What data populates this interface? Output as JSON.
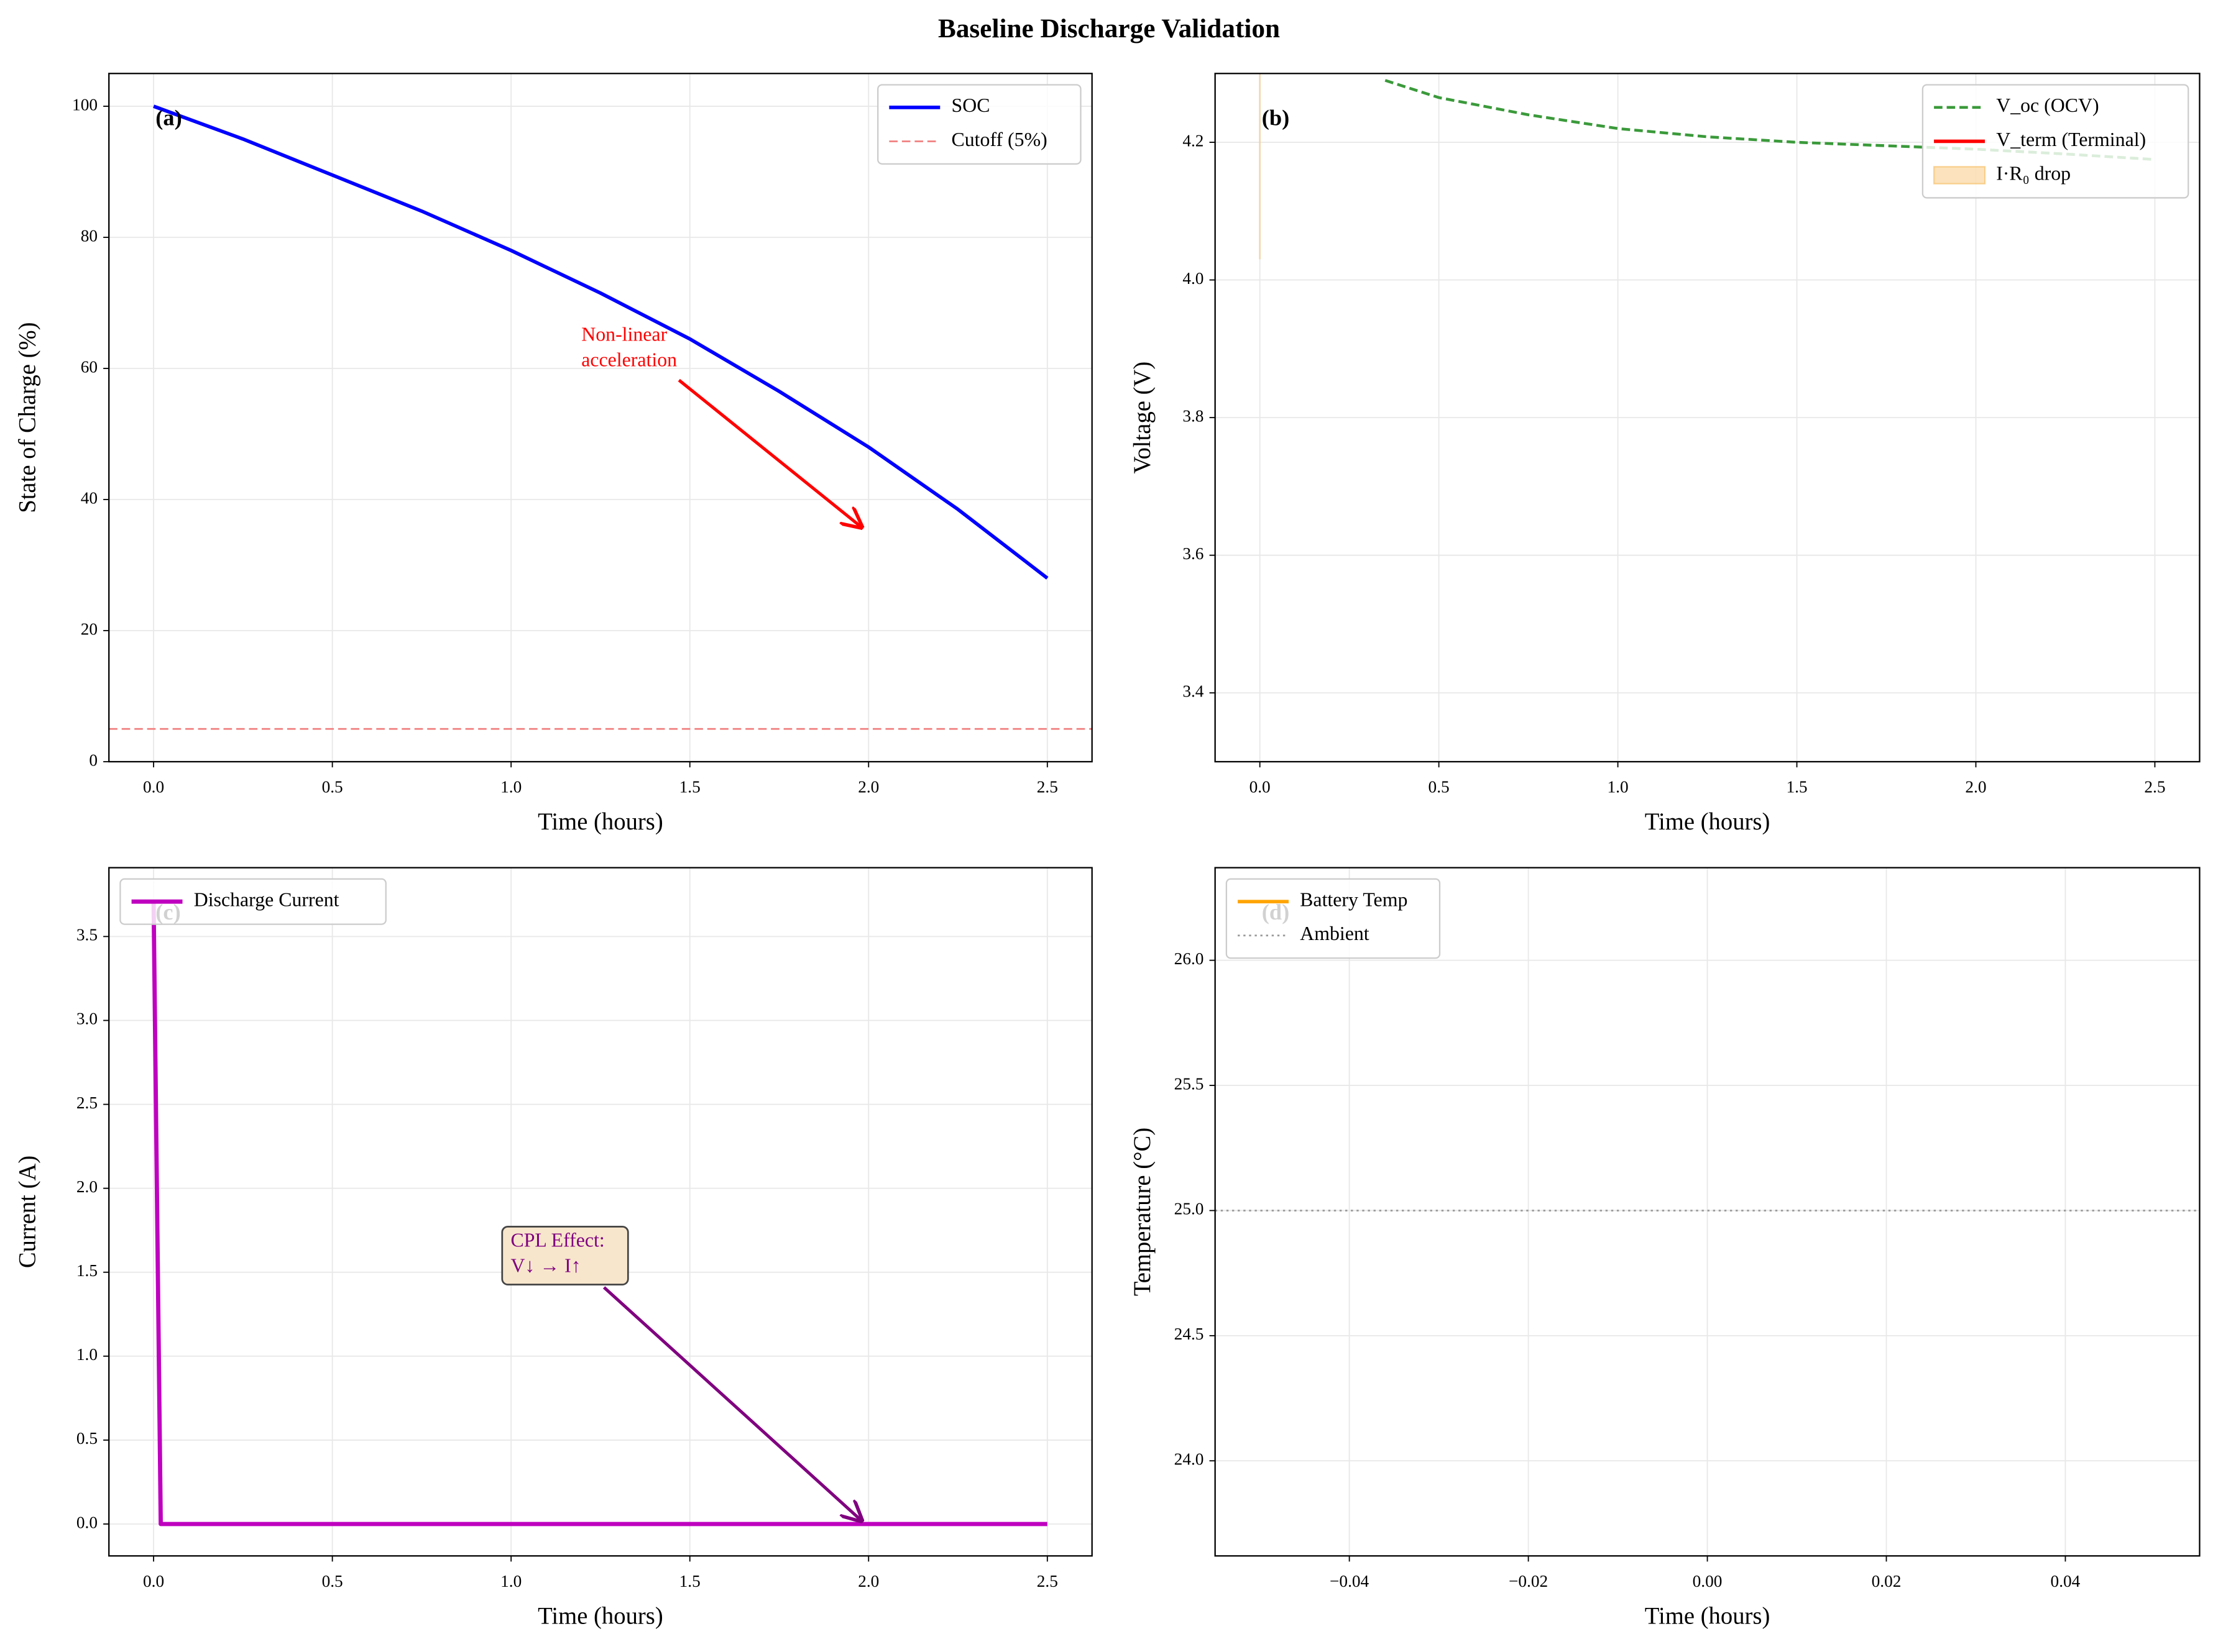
{
  "title": "Baseline Discharge Validation",
  "chart_data": [
    {
      "type": "line",
      "label": "(a)",
      "xlabel": "Time (hours)",
      "ylabel": "State of Charge (%)",
      "xlim": [
        -0.125,
        2.625
      ],
      "ylim": [
        0,
        105
      ],
      "xticks": [
        {
          "value": 0,
          "label": "0.0"
        },
        {
          "value": 0.5,
          "label": "0.5"
        },
        {
          "value": 1,
          "label": "1.0"
        },
        {
          "value": 1.5,
          "label": "1.5"
        },
        {
          "value": 2,
          "label": "2.0"
        },
        {
          "value": 2.5,
          "label": "2.5"
        }
      ],
      "yticks": [
        0,
        20,
        40,
        60,
        80,
        100
      ],
      "grid": true,
      "legend": "upper right",
      "series": [
        {
          "name": "SOC",
          "color": "#0000ff",
          "style": "solid",
          "width": 2.5,
          "x": [
            0,
            0.25,
            0.5,
            0.75,
            1,
            1.25,
            1.5,
            1.75,
            2,
            2.25,
            2.5
          ],
          "values": [
            100,
            95,
            89.5,
            84,
            78,
            71.5,
            64.5,
            56.5,
            48,
            38.5,
            28
          ]
        },
        {
          "name": "Cutoff (5%)",
          "color": "#f08080",
          "style": "dashed",
          "width": 1.2,
          "hline": 5
        }
      ],
      "annotations": [
        {
          "lines": [
            "Non-linear",
            "acceleration"
          ],
          "color": "#ff0000"
        }
      ]
    },
    {
      "type": "line",
      "label": "(b)",
      "xlabel": "Time (hours)",
      "ylabel": "Voltage (V)",
      "xlim": [
        -0.125,
        2.625
      ],
      "ylim": [
        3.3,
        4.3
      ],
      "xticks": [
        {
          "value": 0,
          "label": "0.0"
        },
        {
          "value": 0.5,
          "label": "0.5"
        },
        {
          "value": 1,
          "label": "1.0"
        },
        {
          "value": 1.5,
          "label": "1.5"
        },
        {
          "value": 2,
          "label": "2.0"
        },
        {
          "value": 2.5,
          "label": "2.5"
        }
      ],
      "yticks": [
        3.4,
        3.6,
        3.8,
        {
          "value": 4,
          "label": "4.0"
        },
        4.2
      ],
      "grid": true,
      "legend": "upper right",
      "series": [
        {
          "name": "V_oc (OCV)",
          "color": "#3a9a3a",
          "style": "dashed",
          "width": 2,
          "x": [
            0.35,
            0.5,
            0.75,
            1,
            1.25,
            1.5,
            1.75,
            2,
            2.25,
            2.5
          ],
          "values": [
            4.29,
            4.265,
            4.24,
            4.22,
            4.208,
            4.2,
            4.195,
            4.19,
            4.183,
            4.175
          ]
        },
        {
          "name": "V_term (Terminal)",
          "color": "#ff0000",
          "style": "solid",
          "width": 2.5,
          "x": [],
          "values": []
        },
        {
          "name": "I·R₀ drop",
          "color": "#f5b041",
          "kind": "fill",
          "x": [
            0
          ],
          "low": [
            4.03
          ],
          "high": [
            4.3
          ]
        }
      ],
      "annotations": []
    },
    {
      "type": "line",
      "label": "(c)",
      "xlabel": "Time (hours)",
      "ylabel": "Current (A)",
      "xlim": [
        -0.125,
        2.625
      ],
      "ylim": [
        -0.19,
        3.91
      ],
      "xticks": [
        {
          "value": 0,
          "label": "0.0"
        },
        {
          "value": 0.5,
          "label": "0.5"
        },
        {
          "value": 1,
          "label": "1.0"
        },
        {
          "value": 1.5,
          "label": "1.5"
        },
        {
          "value": 2,
          "label": "2.0"
        },
        {
          "value": 2.5,
          "label": "2.5"
        }
      ],
      "yticks": [
        {
          "value": 0,
          "label": "0.0"
        },
        0.5,
        {
          "value": 1,
          "label": "1.0"
        },
        1.5,
        {
          "value": 2,
          "label": "2.0"
        },
        2.5,
        {
          "value": 3,
          "label": "3.0"
        },
        3.5
      ],
      "grid": true,
      "legend": "upper left",
      "series": [
        {
          "name": "Discharge Current",
          "color": "#bf00bf",
          "style": "solid",
          "width": 3,
          "x": [
            0,
            0.02,
            2.5
          ],
          "values": [
            3.7,
            0,
            0
          ]
        }
      ],
      "annotations": [
        {
          "lines": [
            "CPL Effect:",
            "V↓ → I↑"
          ],
          "color": "#800080"
        }
      ]
    },
    {
      "type": "line",
      "label": "(d)",
      "xlabel": "Time (hours)",
      "ylabel": "Temperature (°C)",
      "xlim": [
        -0.055,
        0.055
      ],
      "ylim": [
        23.62,
        26.37
      ],
      "xticks": [
        {
          "value": -0.04,
          "label": "−0.04"
        },
        {
          "value": -0.02,
          "label": "−0.02"
        },
        {
          "value": 0,
          "label": "0.00"
        },
        {
          "value": 0.02,
          "label": "0.02"
        },
        {
          "value": 0.04,
          "label": "0.04"
        }
      ],
      "yticks": [
        {
          "value": 24,
          "label": "24.0"
        },
        24.5,
        {
          "value": 25,
          "label": "25.0"
        },
        25.5,
        {
          "value": 26,
          "label": "26.0"
        }
      ],
      "grid": true,
      "legend": "upper left",
      "series": [
        {
          "name": "Battery Temp",
          "color": "#ffa500",
          "style": "solid",
          "width": 2.5,
          "x": [],
          "values": []
        },
        {
          "name": "Ambient",
          "color": "#999999",
          "style": "dotted",
          "width": 1.2,
          "hline": 25
        }
      ],
      "annotations": []
    }
  ]
}
